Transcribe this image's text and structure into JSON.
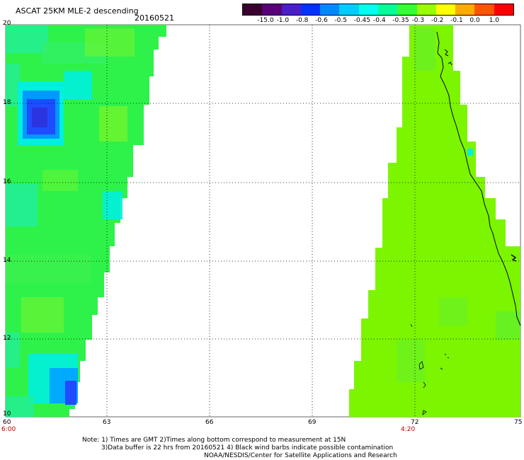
{
  "header": {
    "title": "ASCAT 25KM MLE-2 descending",
    "date": "20160521"
  },
  "colorbar": {
    "colors": [
      "#3a0030",
      "#5a007a",
      "#4b1fc8",
      "#0033ff",
      "#0088ff",
      "#00cdff",
      "#00ffee",
      "#00ff99",
      "#33ff33",
      "#99ff00",
      "#ffff00",
      "#ffaa00",
      "#ff5500",
      "#ff0000"
    ],
    "labels": [
      "-15.0",
      "-1.0",
      "-0.8",
      "-0.6",
      "-0.5",
      "-0.45",
      "-0.4",
      "-0.35",
      "-0.3",
      "-0.2",
      "-0.1",
      "0.0",
      "1.0"
    ]
  },
  "map": {
    "lat_labels": [
      "20",
      "18",
      "16",
      "14",
      "12",
      "10"
    ],
    "lon_labels": [
      "60",
      "63",
      "66",
      "69",
      "72",
      "75"
    ],
    "time_labels": [
      "6:00",
      "4:20"
    ],
    "colors": {
      "swath_west": "#2ef24a",
      "swath_east": "#7cf500",
      "high_mle": "#00f0dd",
      "very_high_mle": "#1f4cff",
      "coastline": "#000000"
    }
  },
  "footer": {
    "line1": "Note: 1) Times are GMT 2)Times along bottom correspond to measurement at 15N",
    "line2": "3)Data buffer is 22 hrs from 20160521 4) Black wind barbs indicate possible contamination",
    "line3": "NOAA/NESDIS/Center for Satellite Applications and Research"
  }
}
